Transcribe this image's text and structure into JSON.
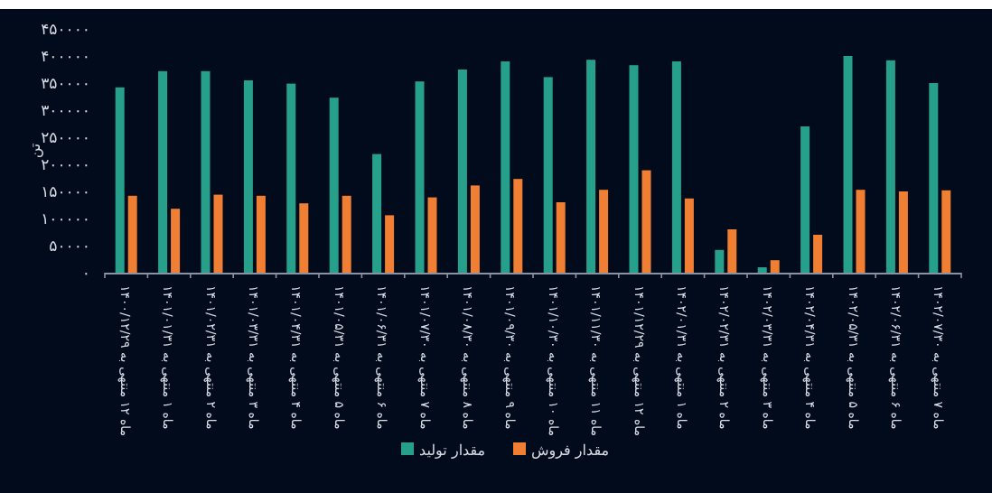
{
  "chart_data": {
    "type": "bar",
    "ylabel": "تن",
    "categories": [
      "ماه ۱۲ منتهی به ۱۴۰۰/۱۲/۲۹",
      "ماه ۱ منتهی به ۱۴۰۱/۰۱/۳۱",
      "ماه ۲ منتهی به ۱۴۰۱/۰۲/۳۱",
      "ماه ۳ منتهی به ۱۴۰۱/۰۳/۳۱",
      "ماه ۴ منتهی به ۱۴۰۱/۰۴/۳۱",
      "ماه ۵ منتهی به ۱۴۰۱/۰۵/۳۱",
      "ماه ۶ منتهی به ۱۴۰۱/۰۶/۳۱",
      "ماه ۷ منتهی به ۱۴۰۱/۰۷/۳۰",
      "ماه ۸ منتهی به ۱۴۰۱/۰۸/۳۰",
      "ماه ۹ منتهی به ۱۴۰۱/۰۹/۳۰",
      "ماه ۱۰ منتهی به ۱۴۰۱/۱۰/۳۰",
      "ماه ۱۱ منتهی به ۱۴۰۱/۱۱/۳۰",
      "ماه ۱۲ منتهی به ۱۴۰۱/۱۲/۲۹",
      "ماه ۱ منتهی به ۱۴۰۲/۰۱/۳۱",
      "ماه ۲ منتهی به ۱۴۰۲/۰۲/۳۱",
      "ماه ۳ منتهی به ۱۴۰۲/۰۳/۳۱",
      "ماه ۴ منتهی به ۱۴۰۲/۰۴/۳۱",
      "ماه ۵ منتهی به ۱۴۰۲/۰۵/۳۱",
      "ماه ۶ منتهی به ۱۴۰۲/۰۶/۳۱",
      "ماه ۷ منتهی به ۱۴۰۲/۰۷/۳۰"
    ],
    "series": [
      {
        "name": "مقدار تولید",
        "color": "#26a08a",
        "values": [
          342000,
          372000,
          372000,
          355000,
          349000,
          323000,
          219000,
          353000,
          375000,
          390000,
          361000,
          393000,
          383000,
          390000,
          42000,
          10000,
          270000,
          400000,
          392000,
          350000
        ]
      },
      {
        "name": "مقدار فروش",
        "color": "#f07f33",
        "values": [
          142000,
          118000,
          144000,
          142000,
          128000,
          142000,
          106000,
          139000,
          161000,
          173000,
          130000,
          153000,
          189000,
          137000,
          80000,
          23000,
          70000,
          153000,
          150000,
          152000
        ]
      }
    ],
    "ylim": [
      0,
      450000
    ],
    "yticks": [
      {
        "value": 0,
        "label": "۰"
      },
      {
        "value": 50000,
        "label": "۵۰۰۰۰"
      },
      {
        "value": 100000,
        "label": "۱۰۰۰۰۰"
      },
      {
        "value": 150000,
        "label": "۱۵۰۰۰۰"
      },
      {
        "value": 200000,
        "label": "۲۰۰۰۰۰"
      },
      {
        "value": 250000,
        "label": "۲۵۰۰۰۰"
      },
      {
        "value": 300000,
        "label": "۳۰۰۰۰۰"
      },
      {
        "value": 350000,
        "label": "۳۵۰۰۰۰"
      },
      {
        "value": 400000,
        "label": "۴۰۰۰۰۰"
      },
      {
        "value": 450000,
        "label": "۴۵۰۰۰۰"
      }
    ],
    "grid": false,
    "legend": "bottom"
  }
}
